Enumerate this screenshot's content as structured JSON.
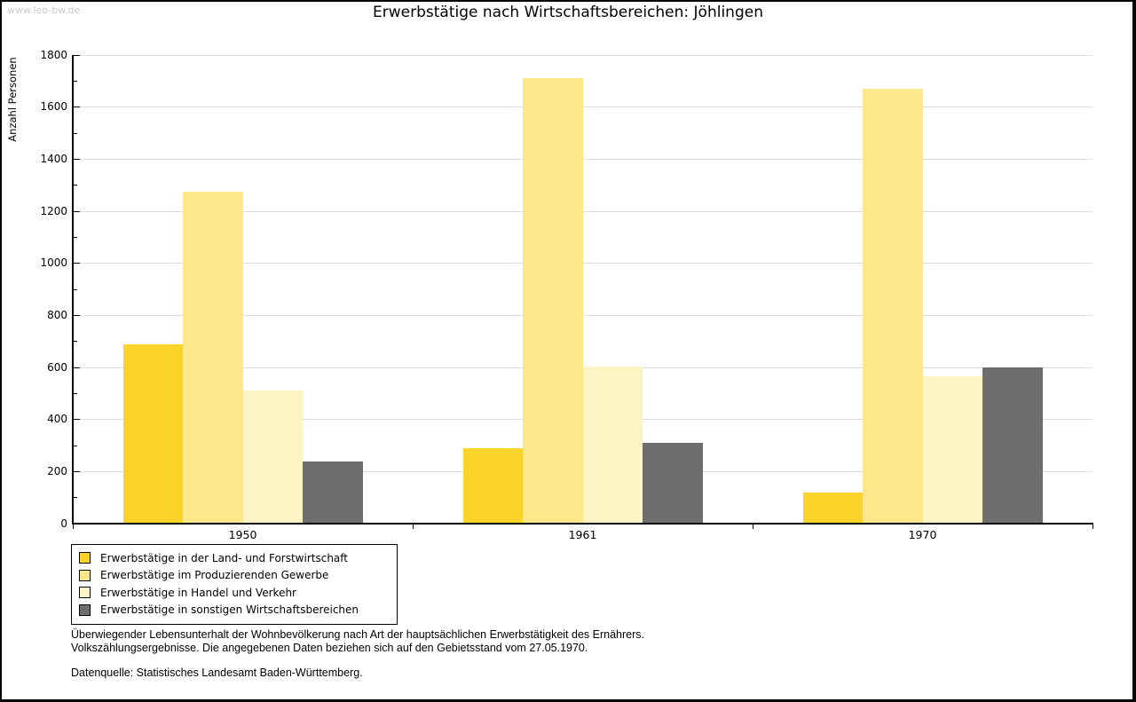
{
  "watermark": "www.leo-bw.de",
  "title": "Erwerbstätige nach Wirtschaftsbereichen: Jöhlingen",
  "footer": {
    "line1": "Überwiegender Lebensunterhalt der Wohnbevölkerung nach Art der hauptsächlichen Erwerbstätigkeit des Ernährers.",
    "line2": "Volkszählungsergebnisse. Die angegebenen Daten beziehen sich auf den Gebietsstand vom 27.05.1970.",
    "source": "Datenquelle: Statistisches Landesamt Baden-Württemberg."
  },
  "chart_data": {
    "type": "bar",
    "title": "Erwerbstätige nach Wirtschaftsbereichen: Jöhlingen",
    "xlabel": "",
    "ylabel": "Anzahl Personen",
    "categories": [
      "1950",
      "1961",
      "1970"
    ],
    "series": [
      {
        "name": "Erwerbstätige in der Land- und Forstwirtschaft",
        "color": "#FBD32B",
        "values": [
          690,
          290,
          120
        ]
      },
      {
        "name": "Erwerbstätige im Produzierenden Gewerbe",
        "color": "#FCE88A",
        "values": [
          1275,
          1710,
          1670
        ]
      },
      {
        "name": "Erwerbstätige in Handel und Verkehr",
        "color": "#FDF4C6",
        "values": [
          510,
          605,
          565
        ]
      },
      {
        "name": "Erwerbstätige in sonstigen Wirtschaftsbereichen",
        "color": "#6E6E6E",
        "values": [
          240,
          310,
          600
        ]
      }
    ],
    "ylim": [
      0,
      1800
    ],
    "ytick_step": 200,
    "ytick_minor": 100,
    "grid": true,
    "gridline_color": "#DCDCDC",
    "axis_color": "#000000",
    "legend_position": "bottom-left"
  }
}
